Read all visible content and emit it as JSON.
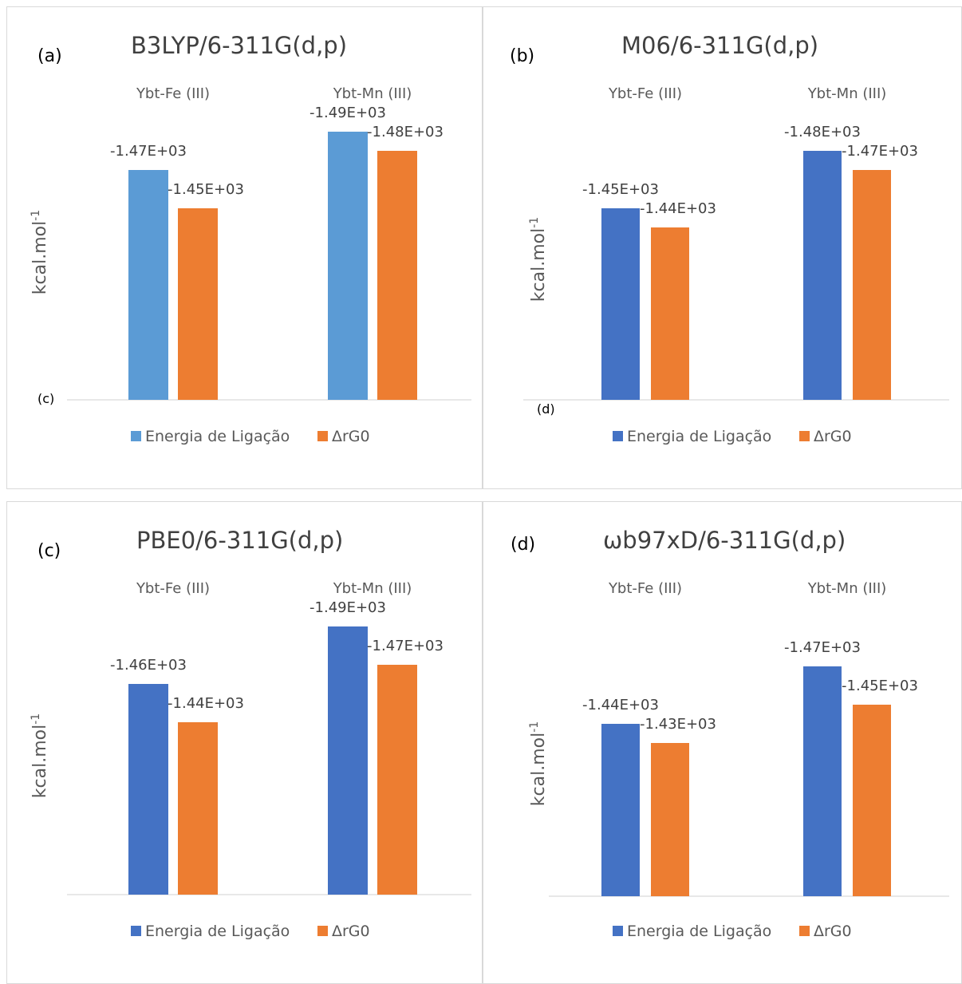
{
  "chart_data": [
    {
      "type": "bar",
      "panel_label": "(a)",
      "title": "B3LYP/6-311G(d,p)",
      "ylabel": "kcal.mol-1",
      "ylabel_base": "kcal.mol",
      "ylabel_sup": "-1",
      "stray_label": "(c)",
      "categories": [
        "Ybt-Fe (III)",
        "Ybt-Mn (III)"
      ],
      "series": [
        {
          "name": "Energia de Ligação",
          "color": "#5B9BD5",
          "values": [
            -1470,
            -1490
          ],
          "labels": [
            "-1.47E+03",
            "-1.49E+03"
          ]
        },
        {
          "name": "ΔrG0",
          "color": "#ED7D31",
          "values": [
            -1450,
            -1480
          ],
          "labels": [
            "-1.45E+03",
            "-1.48E+03"
          ]
        }
      ],
      "ylim": [
        -1500,
        0
      ],
      "legend_position": "bottom",
      "grid": false
    },
    {
      "type": "bar",
      "panel_label": "(b)",
      "title": "M06/6-311G(d,p)",
      "ylabel": "kcal.mol-1",
      "ylabel_base": "kcal.mol",
      "ylabel_sup": "-1",
      "stray_label": "(d)",
      "categories": [
        "Ybt-Fe (III)",
        "Ybt-Mn (III)"
      ],
      "series": [
        {
          "name": "Energia de Ligação",
          "color": "#4472C4",
          "values": [
            -1450,
            -1480
          ],
          "labels": [
            "-1.45E+03",
            "-1.48E+03"
          ]
        },
        {
          "name": "ΔrG0",
          "color": "#ED7D31",
          "values": [
            -1440,
            -1470
          ],
          "labels": [
            "-1.44E+03",
            "-1.47E+03"
          ]
        }
      ],
      "ylim": [
        -1500,
        0
      ],
      "legend_position": "bottom",
      "grid": false
    },
    {
      "type": "bar",
      "panel_label": "(c)",
      "title": "PBE0/6-311G(d,p)",
      "ylabel": "kcal.mol-1",
      "ylabel_base": "kcal.mol",
      "ylabel_sup": "-1",
      "stray_label": "",
      "categories": [
        "Ybt-Fe (III)",
        "Ybt-Mn (III)"
      ],
      "series": [
        {
          "name": "Energia de Ligação",
          "color": "#4472C4",
          "values": [
            -1460,
            -1490
          ],
          "labels": [
            "-1.46E+03",
            "-1.49E+03"
          ]
        },
        {
          "name": "ΔrG0",
          "color": "#ED7D31",
          "values": [
            -1440,
            -1470
          ],
          "labels": [
            "-1.44E+03",
            "-1.47E+03"
          ]
        }
      ],
      "ylim": [
        -1500,
        0
      ],
      "legend_position": "bottom",
      "grid": false
    },
    {
      "type": "bar",
      "panel_label": "(d)",
      "title": "ωb97xD/6-311G(d,p)",
      "ylabel": "kcal.mol-1",
      "ylabel_base": "kcal.mol",
      "ylabel_sup": "-1",
      "stray_label": "",
      "categories": [
        "Ybt-Fe (III)",
        "Ybt-Mn (III)"
      ],
      "series": [
        {
          "name": "Energia de Ligação",
          "color": "#4472C4",
          "values": [
            -1440,
            -1470
          ],
          "labels": [
            "-1.44E+03",
            "-1.47E+03"
          ]
        },
        {
          "name": "ΔrG0",
          "color": "#ED7D31",
          "values": [
            -1430,
            -1450
          ],
          "labels": [
            "-1.43E+03",
            "-1.45E+03"
          ]
        }
      ],
      "ylim": [
        -1500,
        0
      ],
      "legend_position": "bottom",
      "grid": false
    }
  ]
}
